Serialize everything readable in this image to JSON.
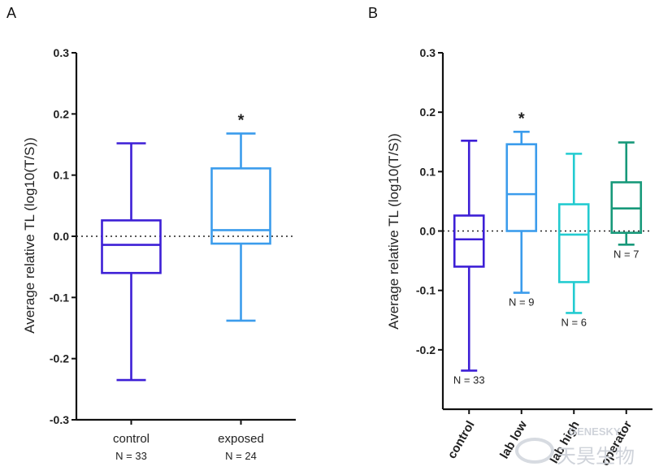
{
  "chart_data": [
    {
      "type": "box",
      "panel_label": "A",
      "ylabel": "Average relative TL (log10(T/S))",
      "ylim": [
        -0.3,
        0.3
      ],
      "yticks": [
        -0.3,
        -0.2,
        -0.1,
        0.0,
        0.1,
        0.2,
        0.3
      ],
      "ytick_labels": [
        "-0.3",
        "-0.2",
        "-0.1",
        "0.0",
        "0.1",
        "0.2",
        "0.3"
      ],
      "reference_line": 0.0,
      "categories": [
        "control",
        "exposed"
      ],
      "boxes": [
        {
          "name": "control",
          "n_label": "N = 33",
          "min": -0.235,
          "q1": -0.06,
          "median": -0.014,
          "q3": 0.026,
          "max": 0.152,
          "color": "#3d1fd6",
          "significance": ""
        },
        {
          "name": "exposed",
          "n_label": "N = 24",
          "min": -0.138,
          "q1": -0.012,
          "median": 0.01,
          "q3": 0.111,
          "max": 0.168,
          "color": "#3b9cec",
          "significance": "*"
        }
      ]
    },
    {
      "type": "box",
      "panel_label": "B",
      "ylabel": "Average relative TL (log10(T/S))",
      "ylim": [
        -0.3,
        0.3
      ],
      "yticks": [
        -0.2,
        -0.1,
        0.0,
        0.1,
        0.2,
        0.3
      ],
      "ytick_labels": [
        "-0.2",
        "-0.1",
        "0.0",
        "0.1",
        "0.2",
        "0.3"
      ],
      "reference_line": 0.0,
      "categories": [
        "control",
        "lab low",
        "lab high",
        "operator"
      ],
      "boxes": [
        {
          "name": "control",
          "n_label": "N = 33",
          "min": -0.235,
          "q1": -0.06,
          "median": -0.014,
          "q3": 0.026,
          "max": 0.152,
          "color": "#3d1fd6",
          "significance": ""
        },
        {
          "name": "lab low",
          "n_label": "N = 9",
          "min": -0.104,
          "q1": 0.0,
          "median": 0.062,
          "q3": 0.146,
          "max": 0.167,
          "color": "#3b9cec",
          "significance": "*"
        },
        {
          "name": "lab high",
          "n_label": "N = 6",
          "min": -0.138,
          "q1": -0.086,
          "median": -0.006,
          "q3": 0.045,
          "max": 0.13,
          "color": "#23cbd0",
          "significance": ""
        },
        {
          "name": "operator",
          "n_label": "N = 7",
          "min": -0.023,
          "q1": -0.003,
          "median": 0.038,
          "q3": 0.082,
          "max": 0.149,
          "color": "#17997a",
          "significance": ""
        }
      ]
    }
  ],
  "watermark": {
    "text": "天昊生物",
    "latin": "GENESKY",
    "color": "#cfd3da"
  }
}
